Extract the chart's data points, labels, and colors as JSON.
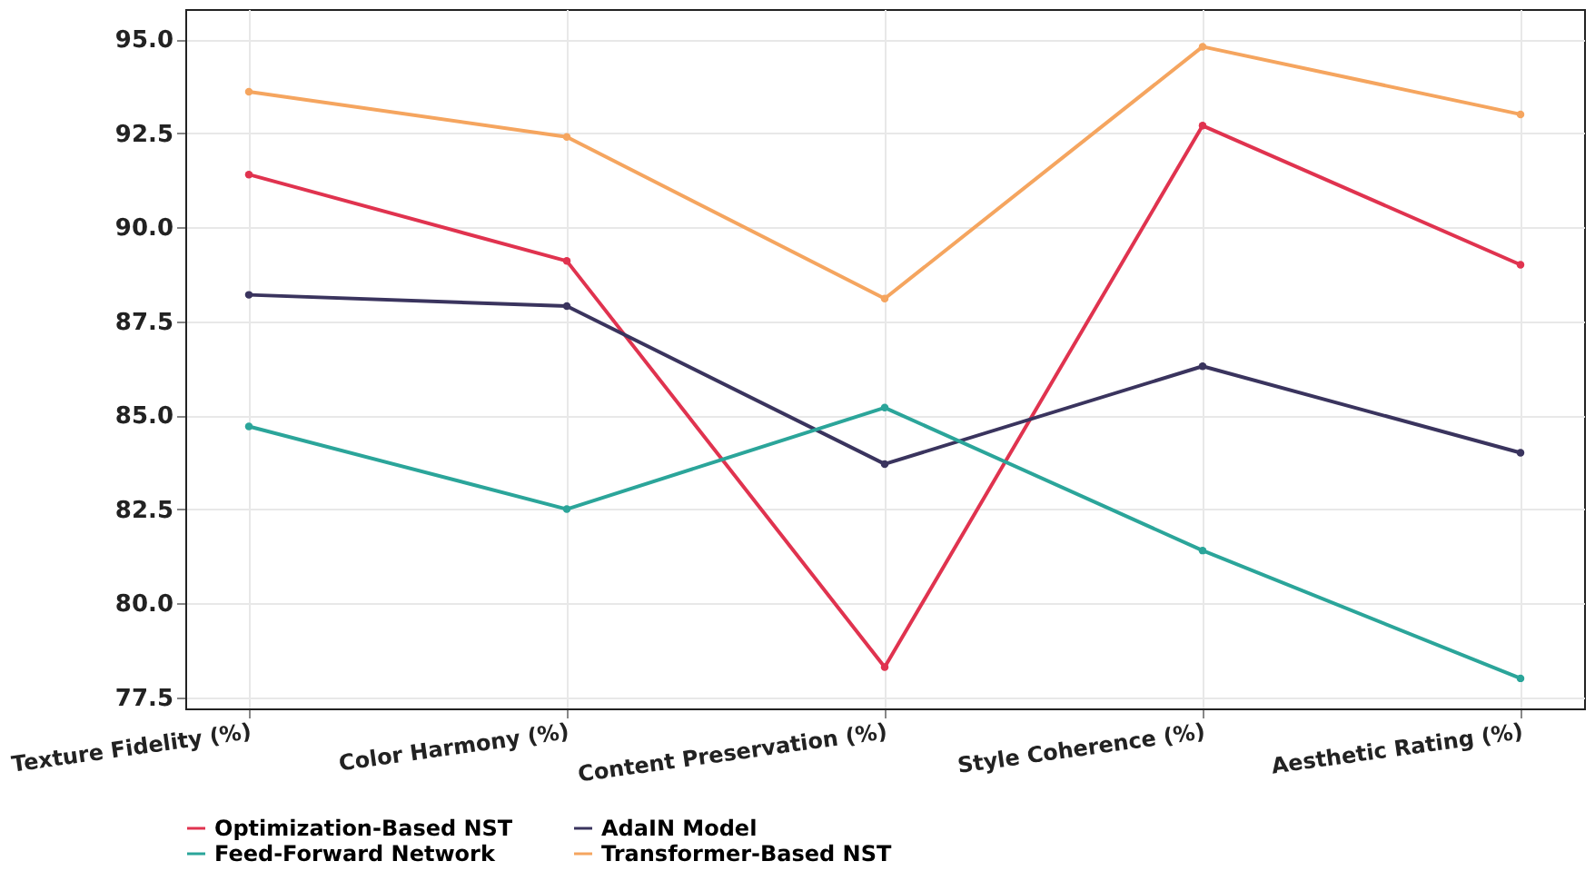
{
  "chart_data": {
    "type": "line",
    "categories": [
      "Texture Fidelity (%)",
      "Color Harmony (%)",
      "Content Preservation (%)",
      "Style Coherence (%)",
      "Aesthetic Rating (%)"
    ],
    "series": [
      {
        "name": "Optimization-Based NST",
        "color": "#e0334f",
        "values": [
          91.4,
          89.1,
          78.3,
          92.7,
          89.0
        ]
      },
      {
        "name": "AdaIN Model",
        "color": "#3a345e",
        "values": [
          88.2,
          87.9,
          83.7,
          86.3,
          84.0
        ]
      },
      {
        "name": "Feed-Forward Network",
        "color": "#2ba59a",
        "values": [
          84.7,
          82.5,
          85.2,
          81.4,
          78.0
        ]
      },
      {
        "name": "Transformer-Based NST",
        "color": "#f5a55f",
        "values": [
          93.6,
          92.4,
          88.1,
          94.8,
          93.0
        ]
      }
    ],
    "ylim": [
      77.2,
      95.8
    ],
    "yticks": [
      {
        "value": 77.5,
        "label": "77.5"
      },
      {
        "value": 80,
        "label": "80.0"
      },
      {
        "value": 82.5,
        "label": "82.5"
      },
      {
        "value": 85,
        "label": "85.0"
      },
      {
        "value": 87.5,
        "label": "87.5"
      },
      {
        "value": 90,
        "label": "90.0"
      },
      {
        "value": 92.5,
        "label": "92.5"
      },
      {
        "value": 95,
        "label": "95.0"
      }
    ],
    "grid": true,
    "legend": "bottom",
    "marker": "circle",
    "line_style": "solid"
  }
}
